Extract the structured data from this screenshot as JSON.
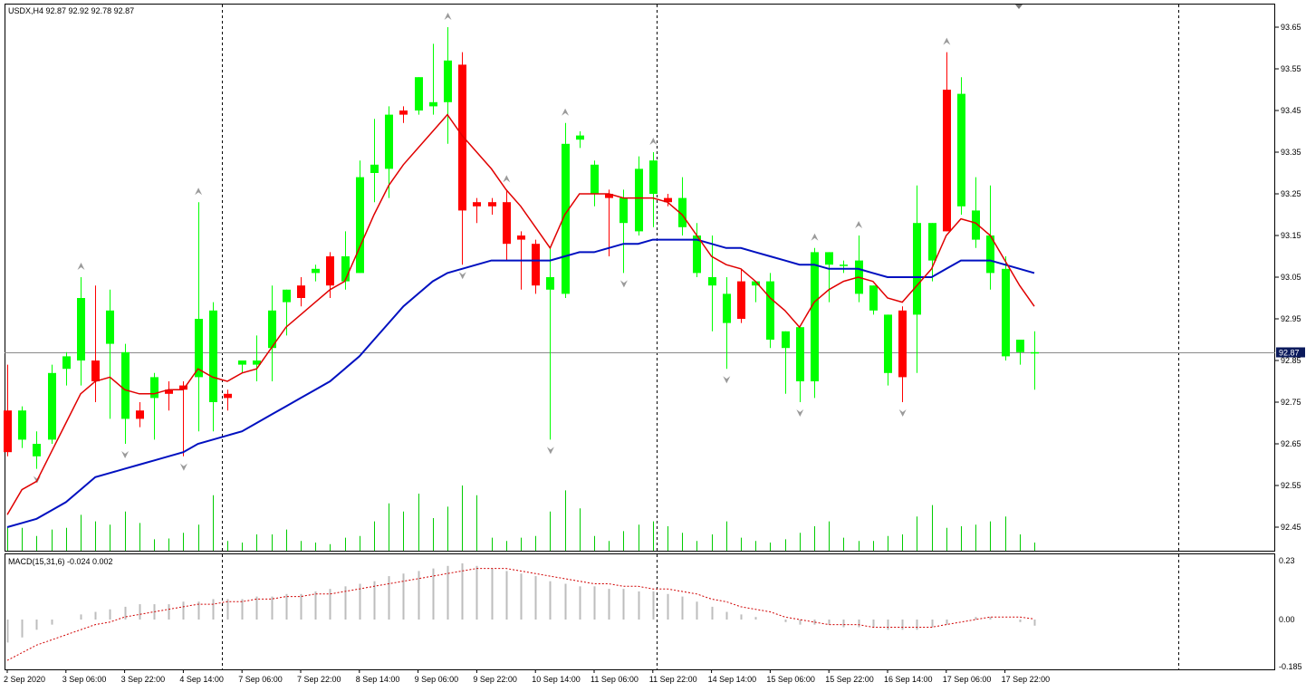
{
  "chart_data": [
    {
      "type": "candlestick",
      "header": "USDX,H4  92.87 92.92 92.78 92.87",
      "current_price_label": "92.87",
      "current_price": 92.87,
      "y_ticks": [
        "93.65",
        "93.55",
        "93.45",
        "93.35",
        "93.25",
        "93.15",
        "93.05",
        "92.95",
        "92.85",
        "92.75",
        "92.65",
        "92.55",
        "92.45"
      ],
      "ylim": [
        92.4,
        93.7
      ],
      "x_ticks": [
        "2 Sep 2020",
        "3 Sep 06:00",
        "3 Sep 22:00",
        "4 Sep 14:00",
        "7 Sep 06:00",
        "7 Sep 22:00",
        "8 Sep 14:00",
        "9 Sep 06:00",
        "9 Sep 22:00",
        "10 Sep 14:00",
        "11 Sep 06:00",
        "11 Sep 22:00",
        "14 Sep 14:00",
        "15 Sep 06:00",
        "15 Sep 22:00",
        "16 Sep 14:00",
        "17 Sep 06:00",
        "17 Sep 22:00"
      ],
      "colors": {
        "bull": "#00ff00",
        "bear": "#ff0000",
        "ma_fast": "#e00000",
        "ma_slow": "#0010c0",
        "volume": "#00cc00",
        "grid": "#000000",
        "price_tag": "#0b1a5c"
      },
      "candles": [
        [
          92.73,
          92.84,
          92.62,
          92.63
        ],
        [
          92.66,
          92.74,
          92.64,
          92.73
        ],
        [
          92.62,
          92.68,
          92.59,
          92.65
        ],
        [
          92.66,
          92.84,
          92.65,
          92.82
        ],
        [
          92.83,
          92.87,
          92.79,
          92.86
        ],
        [
          92.85,
          93.05,
          92.79,
          93.0
        ],
        [
          92.85,
          93.03,
          92.75,
          92.8
        ],
        [
          92.89,
          93.02,
          92.71,
          92.97
        ],
        [
          92.71,
          92.89,
          92.65,
          92.87
        ],
        [
          92.73,
          92.75,
          92.69,
          92.71
        ],
        [
          92.76,
          92.82,
          92.66,
          92.81
        ],
        [
          92.78,
          92.8,
          92.73,
          92.77
        ],
        [
          92.79,
          92.8,
          92.62,
          92.78
        ],
        [
          92.81,
          93.23,
          92.68,
          92.95
        ],
        [
          92.75,
          92.99,
          92.68,
          92.97
        ],
        [
          92.77,
          92.78,
          92.73,
          92.76
        ],
        [
          92.84,
          92.85,
          92.82,
          92.85
        ],
        [
          92.84,
          92.91,
          92.8,
          92.85
        ],
        [
          92.88,
          93.03,
          92.8,
          92.97
        ],
        [
          92.99,
          93.02,
          92.91,
          93.02
        ],
        [
          93.03,
          93.05,
          92.98,
          93.0
        ],
        [
          93.06,
          93.08,
          93.04,
          93.07
        ],
        [
          93.1,
          93.11,
          93.0,
          93.03
        ],
        [
          93.04,
          93.16,
          93.02,
          93.1
        ],
        [
          93.06,
          93.33,
          93.06,
          93.29
        ],
        [
          93.3,
          93.43,
          93.23,
          93.32
        ],
        [
          93.31,
          93.46,
          93.24,
          93.44
        ],
        [
          93.45,
          93.46,
          93.42,
          93.44
        ],
        [
          93.45,
          93.53,
          93.44,
          93.53
        ],
        [
          93.46,
          93.61,
          93.44,
          93.47
        ],
        [
          93.47,
          93.65,
          93.37,
          93.57
        ],
        [
          93.56,
          93.59,
          93.08,
          93.21
        ],
        [
          93.23,
          93.24,
          93.18,
          93.22
        ],
        [
          93.23,
          93.24,
          93.2,
          93.22
        ],
        [
          93.23,
          93.26,
          93.09,
          93.13
        ],
        [
          93.15,
          93.16,
          93.02,
          93.14
        ],
        [
          93.13,
          93.14,
          93.01,
          93.03
        ],
        [
          93.02,
          93.12,
          92.66,
          93.05
        ],
        [
          93.01,
          93.42,
          93.0,
          93.37
        ],
        [
          93.38,
          93.4,
          93.36,
          93.39
        ],
        [
          93.25,
          93.33,
          93.22,
          93.32
        ],
        [
          93.25,
          93.26,
          93.1,
          93.24
        ],
        [
          93.18,
          93.26,
          93.06,
          93.24
        ],
        [
          93.16,
          93.34,
          93.15,
          93.31
        ],
        [
          93.25,
          93.35,
          93.17,
          93.33
        ],
        [
          93.24,
          93.25,
          93.22,
          93.23
        ],
        [
          93.17,
          93.29,
          93.15,
          93.24
        ],
        [
          93.06,
          93.18,
          93.05,
          93.15
        ],
        [
          93.03,
          93.15,
          92.92,
          93.05
        ],
        [
          92.94,
          93.05,
          92.83,
          93.01
        ],
        [
          93.04,
          93.07,
          92.94,
          92.95
        ],
        [
          93.03,
          93.04,
          92.99,
          93.04
        ],
        [
          92.9,
          93.06,
          92.88,
          93.04
        ],
        [
          92.88,
          92.92,
          92.77,
          92.92
        ],
        [
          92.8,
          92.93,
          92.75,
          92.93
        ],
        [
          92.8,
          93.12,
          92.76,
          93.11
        ],
        [
          93.08,
          93.11,
          92.99,
          93.11
        ],
        [
          93.08,
          93.09,
          93.06,
          93.08
        ],
        [
          93.01,
          93.15,
          92.99,
          93.09
        ],
        [
          92.97,
          93.03,
          92.96,
          93.03
        ],
        [
          92.82,
          92.96,
          92.79,
          92.96
        ],
        [
          92.97,
          92.98,
          92.75,
          92.81
        ],
        [
          92.96,
          93.27,
          92.82,
          93.18
        ],
        [
          93.09,
          93.18,
          93.04,
          93.18
        ],
        [
          93.5,
          93.59,
          93.16,
          93.16
        ],
        [
          93.22,
          93.53,
          93.2,
          93.49
        ],
        [
          93.14,
          93.29,
          93.12,
          93.21
        ],
        [
          93.06,
          93.27,
          93.02,
          93.15
        ],
        [
          92.86,
          93.1,
          92.85,
          93.07
        ],
        [
          92.87,
          92.9,
          92.84,
          92.9
        ],
        [
          92.87,
          92.92,
          92.78,
          92.87
        ]
      ],
      "ma_fast": [
        92.48,
        92.54,
        92.56,
        92.63,
        92.7,
        92.77,
        92.8,
        92.81,
        92.78,
        92.77,
        92.77,
        92.78,
        92.78,
        92.83,
        92.81,
        92.8,
        92.82,
        92.83,
        92.88,
        92.93,
        92.96,
        92.99,
        93.02,
        93.04,
        93.12,
        93.2,
        93.27,
        93.32,
        93.36,
        93.4,
        93.44,
        93.39,
        93.35,
        93.31,
        93.26,
        93.22,
        93.17,
        93.12,
        93.2,
        93.25,
        93.25,
        93.25,
        93.24,
        93.24,
        93.24,
        93.23,
        93.2,
        93.15,
        93.1,
        93.08,
        93.07,
        93.04,
        93.0,
        92.97,
        92.93,
        92.99,
        93.02,
        93.04,
        93.05,
        93.04,
        93.0,
        92.99,
        93.03,
        93.07,
        93.15,
        93.19,
        93.18,
        93.15,
        93.09,
        93.03,
        92.98
      ],
      "ma_slow": [
        92.45,
        92.46,
        92.47,
        92.49,
        92.51,
        92.54,
        92.57,
        92.58,
        92.59,
        92.6,
        92.61,
        92.62,
        92.63,
        92.65,
        92.66,
        92.67,
        92.68,
        92.7,
        92.72,
        92.74,
        92.76,
        92.78,
        92.8,
        92.83,
        92.86,
        92.9,
        92.94,
        92.98,
        93.01,
        93.04,
        93.06,
        93.07,
        93.08,
        93.09,
        93.09,
        93.09,
        93.09,
        93.09,
        93.1,
        93.11,
        93.11,
        93.12,
        93.13,
        93.13,
        93.14,
        93.14,
        93.14,
        93.14,
        93.13,
        93.12,
        93.12,
        93.11,
        93.1,
        93.09,
        93.08,
        93.08,
        93.07,
        93.07,
        93.07,
        93.06,
        93.05,
        93.05,
        93.05,
        93.05,
        93.07,
        93.09,
        93.09,
        93.09,
        93.08,
        93.07,
        93.06
      ],
      "volume": [
        0.3,
        0.28,
        0.18,
        0.26,
        0.28,
        0.44,
        0.36,
        0.32,
        0.48,
        0.34,
        0.14,
        0.15,
        0.22,
        0.32,
        0.68,
        0.12,
        0.1,
        0.2,
        0.2,
        0.26,
        0.12,
        0.1,
        0.08,
        0.16,
        0.18,
        0.36,
        0.58,
        0.48,
        0.7,
        0.4,
        0.54,
        0.8,
        0.68,
        0.16,
        0.12,
        0.16,
        0.18,
        0.48,
        0.74,
        0.52,
        0.18,
        0.12,
        0.24,
        0.32,
        0.36,
        0.3,
        0.22,
        0.12,
        0.2,
        0.36,
        0.16,
        0.12,
        0.1,
        0.14,
        0.22,
        0.3,
        0.36,
        0.16,
        0.12,
        0.12,
        0.18,
        0.2,
        0.42,
        0.56,
        0.28,
        0.3,
        0.32,
        0.36,
        0.42,
        0.2,
        0.1
      ]
    },
    {
      "type": "histogram+line",
      "header": "MACD(15,31,6) -0.024 0.002",
      "y_ticks": [
        "0.23",
        "0.00",
        "-0.185"
      ],
      "ylim": [
        -0.185,
        0.23
      ],
      "histogram": [
        -0.09,
        -0.07,
        -0.04,
        -0.02,
        0.0,
        0.02,
        0.03,
        0.04,
        0.05,
        0.06,
        0.06,
        0.06,
        0.07,
        0.07,
        0.08,
        0.08,
        0.08,
        0.09,
        0.09,
        0.1,
        0.1,
        0.11,
        0.12,
        0.13,
        0.14,
        0.15,
        0.17,
        0.18,
        0.19,
        0.2,
        0.21,
        0.22,
        0.21,
        0.2,
        0.19,
        0.18,
        0.17,
        0.15,
        0.14,
        0.13,
        0.13,
        0.12,
        0.12,
        0.11,
        0.11,
        0.1,
        0.09,
        0.07,
        0.05,
        0.03,
        0.02,
        0.01,
        0.0,
        -0.01,
        -0.02,
        -0.02,
        -0.02,
        -0.03,
        -0.03,
        -0.03,
        -0.04,
        -0.04,
        -0.04,
        -0.03,
        -0.02,
        0.0,
        0.01,
        0.01,
        0.0,
        -0.01,
        -0.024
      ],
      "signal": [
        -0.16,
        -0.13,
        -0.1,
        -0.08,
        -0.06,
        -0.04,
        -0.02,
        -0.01,
        0.01,
        0.02,
        0.03,
        0.04,
        0.05,
        0.06,
        0.06,
        0.07,
        0.07,
        0.08,
        0.08,
        0.09,
        0.09,
        0.1,
        0.1,
        0.11,
        0.12,
        0.13,
        0.14,
        0.15,
        0.16,
        0.17,
        0.18,
        0.19,
        0.2,
        0.2,
        0.2,
        0.19,
        0.18,
        0.17,
        0.16,
        0.15,
        0.14,
        0.14,
        0.13,
        0.13,
        0.12,
        0.12,
        0.11,
        0.1,
        0.08,
        0.07,
        0.05,
        0.04,
        0.03,
        0.01,
        0.0,
        -0.01,
        -0.02,
        -0.02,
        -0.02,
        -0.03,
        -0.03,
        -0.03,
        -0.03,
        -0.03,
        -0.02,
        -0.01,
        0.0,
        0.01,
        0.01,
        0.01,
        0.002
      ],
      "colors": {
        "histogram": "#bdbdbd",
        "signal": "#d00000"
      }
    }
  ]
}
